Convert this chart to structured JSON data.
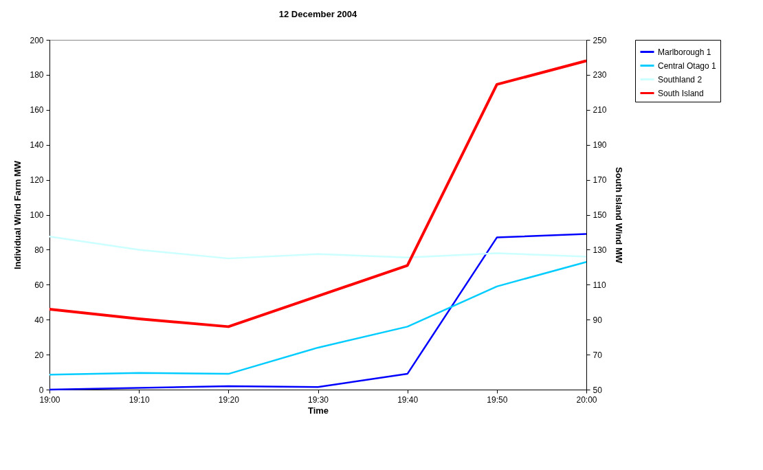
{
  "chart_data": {
    "type": "line",
    "title": "12 December 2004",
    "xlabel": "Time",
    "ylabel": "Individual Wind Farm MW",
    "y2label": "South Island Wind MW",
    "categories": [
      "19:00",
      "19:10",
      "19:20",
      "19:30",
      "19:40",
      "19:50",
      "20:00"
    ],
    "series": [
      {
        "name": "Marlborough 1",
        "color": "#0000ff",
        "values": [
          0,
          1,
          2,
          1.5,
          9,
          87,
          89
        ]
      },
      {
        "name": "Central Otago 1",
        "color": "#00ccff",
        "values": [
          8.5,
          9.5,
          9,
          24,
          36,
          59,
          73
        ]
      },
      {
        "name": "Southland 2",
        "color": "#ccffff",
        "values": [
          87.5,
          80,
          75,
          77.5,
          75.5,
          78,
          76
        ]
      },
      {
        "name": "South Island",
        "color": "#ff0000",
        "axis": "y2",
        "values": [
          96,
          90.5,
          86,
          103.5,
          121,
          224.5,
          238
        ]
      }
    ],
    "ylim": [
      0,
      200
    ],
    "yticks": [
      0,
      20,
      40,
      60,
      80,
      100,
      120,
      140,
      160,
      180,
      200
    ],
    "y2lim": [
      50,
      250
    ],
    "y2ticks": [
      50,
      70,
      90,
      110,
      130,
      150,
      170,
      190,
      210,
      230,
      250
    ],
    "legend": "right",
    "grid": false
  }
}
